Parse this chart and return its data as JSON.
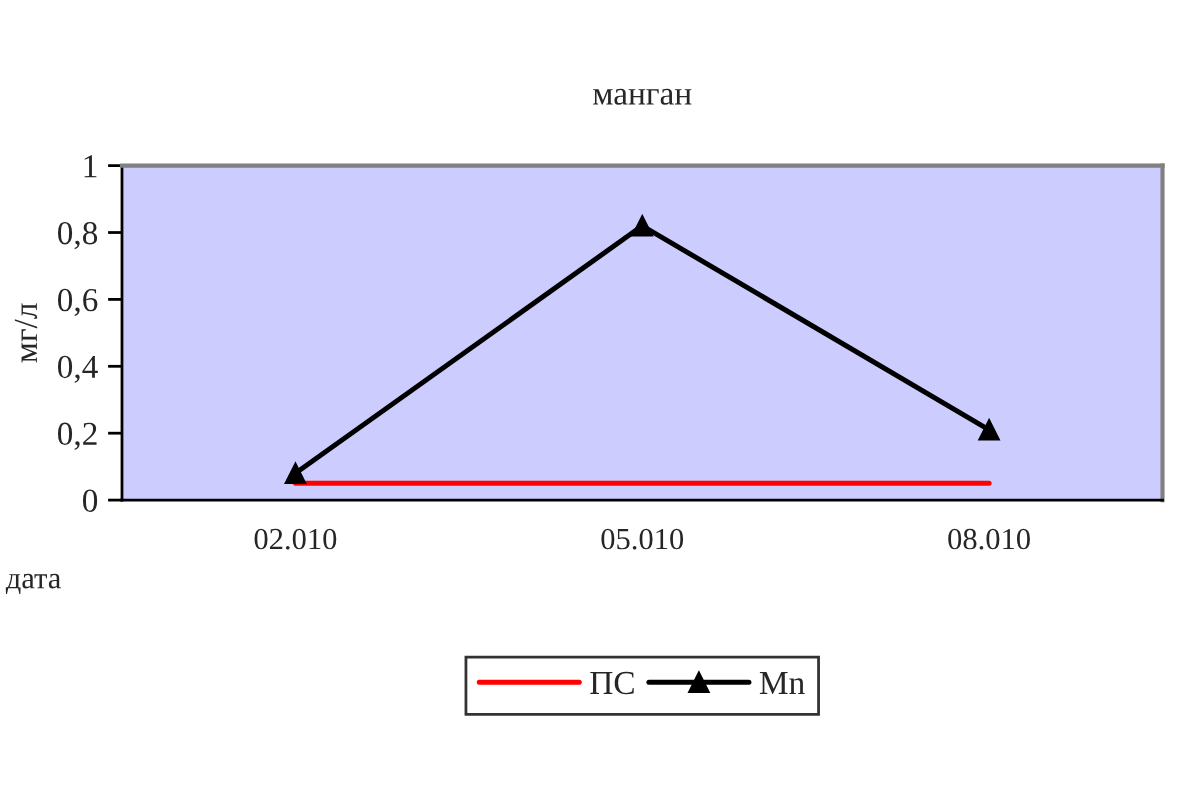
{
  "chart_data": {
    "type": "line",
    "title": "манган",
    "xlabel": "дата",
    "ylabel": "мг/л",
    "categories": [
      "02.010",
      "05.010",
      "08.010"
    ],
    "series": [
      {
        "name": "ПС",
        "color": "#ff0000",
        "marker": "none",
        "values": [
          0.05,
          0.05,
          0.05
        ]
      },
      {
        "name": "Mn",
        "color": "#000000",
        "marker": "triangle",
        "values": [
          0.08,
          0.82,
          0.21
        ]
      }
    ],
    "ylim": [
      0,
      1
    ],
    "yticks": [
      0,
      {
        "value": 0.2,
        "label": "0,2"
      },
      {
        "value": 0.4,
        "label": "0,4"
      },
      {
        "value": 0.6,
        "label": "0,6"
      },
      {
        "value": 0.8,
        "label": "0,8"
      },
      1
    ],
    "grid": false,
    "legend": "bottom",
    "line_style": "solid"
  }
}
